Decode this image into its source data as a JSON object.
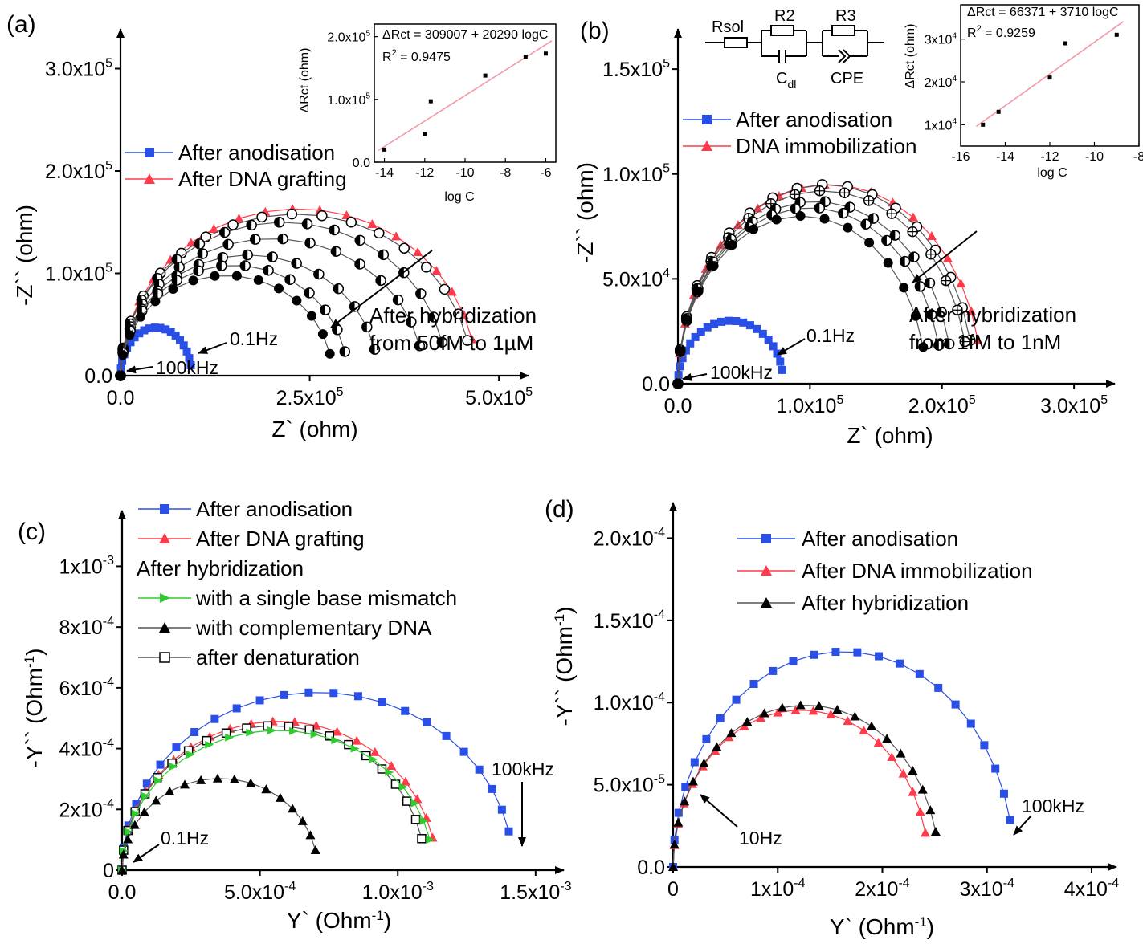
{
  "colors": {
    "blue": "#2a4fe6",
    "red": "#ff3a4a",
    "green": "#2ecc2e",
    "black": "#000000",
    "fit": "#f29aa6"
  },
  "chart_data": [
    {
      "panel": "(a)",
      "type": "scatter",
      "xlabel": "Z` (ohm)",
      "ylabel": "-Z`` (ohm)",
      "xlim": [
        0,
        520000
      ],
      "ylim": [
        0,
        320000
      ],
      "xticks": [
        {
          "v": 0,
          "label": "0.0"
        },
        {
          "v": 250000,
          "label": "2.5x10",
          "exp": "5"
        },
        {
          "v": 500000,
          "label": "5.0x10",
          "exp": "5"
        }
      ],
      "yticks": [
        {
          "v": 0,
          "label": "0.0"
        },
        {
          "v": 100000,
          "label": "1.0x10",
          "exp": "5"
        },
        {
          "v": 200000,
          "label": "2.0x10",
          "exp": "5"
        },
        {
          "v": 300000,
          "label": "3.0x10",
          "exp": "5"
        }
      ],
      "legend": [
        {
          "label": "After anodisation",
          "color": "#2a4fe6",
          "marker": "square"
        },
        {
          "label": "After DNA grafting",
          "color": "#ff3a4a",
          "marker": "triangle"
        }
      ],
      "annotations": [
        "0.1Hz",
        "100kHz",
        "After hybridization",
        "from 50fM to 1µM"
      ],
      "series": [
        {
          "name": "After anodisation",
          "color": "#2a4fe6",
          "marker": "square",
          "rx": 47000,
          "ry": 47000,
          "points": 20
        },
        {
          "name": "After DNA grafting",
          "color": "#ff3a4a",
          "marker": "triangle",
          "rx": 235000,
          "ry": 163000,
          "points": 20
        },
        {
          "name": "hyb 1",
          "color": "#000000",
          "marker": "circle-o",
          "rx": 232000,
          "ry": 158000,
          "points": 18
        },
        {
          "name": "hyb 2",
          "color": "#000000",
          "marker": "circle-h",
          "rx": 215000,
          "ry": 150000,
          "points": 18
        },
        {
          "name": "hyb 3",
          "color": "#000000",
          "marker": "circle-h",
          "rx": 200000,
          "ry": 134000,
          "points": 17
        },
        {
          "name": "hyb 4",
          "color": "#000000",
          "marker": "circle-h",
          "rx": 170000,
          "ry": 118000,
          "points": 16
        },
        {
          "name": "hyb 5",
          "color": "#000000",
          "marker": "circle-h",
          "rx": 150000,
          "ry": 108000,
          "points": 15
        },
        {
          "name": "hyb 6",
          "color": "#000000",
          "marker": "circle-f",
          "rx": 140000,
          "ry": 98000,
          "points": 15
        }
      ],
      "inset": {
        "type": "scatter",
        "xlabel": "log  C",
        "ylabel": "ΔRct (ohm)",
        "xlim": [
          -14.5,
          -5.5
        ],
        "ylim": [
          0,
          220000
        ],
        "xticks": [
          {
            "v": -14,
            "label": "-14"
          },
          {
            "v": -12,
            "label": "-12"
          },
          {
            "v": -10,
            "label": "-10"
          },
          {
            "v": -8,
            "label": "-8"
          },
          {
            "v": -6,
            "label": "-6"
          }
        ],
        "yticks": [
          {
            "v": 0,
            "label": "0.0"
          },
          {
            "v": 100000,
            "label": "1.0x10",
            "exp": "5"
          },
          {
            "v": 200000,
            "label": "2.0x10",
            "exp": "5"
          }
        ],
        "equation": "ΔRct = 309007 + 20290 logC",
        "r2_label": "R",
        "r2_exp": "2",
        "r2_value": " = 0.9475",
        "x": [
          -14,
          -12,
          -11.7,
          -9,
          -7,
          -6
        ],
        "y": [
          20000,
          45000,
          97000,
          138000,
          168000,
          173000
        ],
        "fit": {
          "a": 309007,
          "b": 20290
        }
      }
    },
    {
      "panel": "(b)",
      "type": "scatter",
      "xlabel": "Z` (ohm)",
      "ylabel": "-Z`` (ohm)",
      "xlim": [
        0,
        320000
      ],
      "ylim": [
        0,
        160000
      ],
      "xticks": [
        {
          "v": 0,
          "label": "0.0"
        },
        {
          "v": 100000,
          "label": "1.0x10",
          "exp": "5"
        },
        {
          "v": 200000,
          "label": "2.0x10",
          "exp": "5"
        },
        {
          "v": 300000,
          "label": "3.0x10",
          "exp": "5"
        }
      ],
      "yticks": [
        {
          "v": 0,
          "label": "0.0"
        },
        {
          "v": 50000,
          "label": "5.0x10",
          "exp": "4"
        },
        {
          "v": 100000,
          "label": "1.0x10",
          "exp": "5"
        },
        {
          "v": 150000,
          "label": "1.5x10",
          "exp": "5"
        }
      ],
      "legend": [
        {
          "label": "After anodisation",
          "color": "#2a4fe6",
          "marker": "square"
        },
        {
          "label": "DNA immobilization",
          "color": "#ff3a4a",
          "marker": "triangle"
        }
      ],
      "annotations": [
        "0.1Hz",
        "100kHz",
        "After hybridization",
        "from 1fM to 1nM"
      ],
      "circuit": {
        "rsol": "Rsol",
        "r2": "R2",
        "r3": "R3",
        "cdl": "C",
        "cdl_sub": "dl",
        "cpe": "CPE"
      },
      "series": [
        {
          "name": "After anodisation",
          "color": "#2a4fe6",
          "marker": "square",
          "rx": 40000,
          "ry": 30000,
          "points": 22
        },
        {
          "name": "DNA immobilization",
          "color": "#ff3a4a",
          "marker": "triangle",
          "rx": 115000,
          "ry": 95000,
          "points": 20
        },
        {
          "name": "hyb 1",
          "color": "#000000",
          "marker": "circle-o",
          "rx": 112000,
          "ry": 95000,
          "points": 18
        },
        {
          "name": "hyb 2",
          "color": "#000000",
          "marker": "circle-p",
          "rx": 110000,
          "ry": 92000,
          "points": 18
        },
        {
          "name": "hyb 3",
          "color": "#000000",
          "marker": "circle-h",
          "rx": 104000,
          "ry": 87000,
          "points": 17
        },
        {
          "name": "hyb 4",
          "color": "#000000",
          "marker": "circle-h",
          "rx": 100000,
          "ry": 84000,
          "points": 17
        },
        {
          "name": "hyb 5",
          "color": "#000000",
          "marker": "circle-f",
          "rx": 94000,
          "ry": 80000,
          "points": 16
        }
      ],
      "inset": {
        "type": "scatter",
        "xlabel": "log C",
        "ylabel": "ΔRct (ohm)",
        "xlim": [
          -16,
          -8
        ],
        "ylim": [
          5000,
          38000
        ],
        "xticks": [
          {
            "v": -16,
            "label": "-16"
          },
          {
            "v": -14,
            "label": "-14"
          },
          {
            "v": -12,
            "label": "-12"
          },
          {
            "v": -10,
            "label": "-10"
          },
          {
            "v": -8,
            "label": "-8"
          }
        ],
        "yticks": [
          {
            "v": 10000,
            "label": "1x10",
            "exp": "4"
          },
          {
            "v": 20000,
            "label": "2x10",
            "exp": "4"
          },
          {
            "v": 30000,
            "label": "3x10",
            "exp": "4"
          }
        ],
        "equation": "ΔRct = 66371 + 3710 logC",
        "r2_label": "R",
        "r2_exp": "2",
        "r2_value": " = 0.9259",
        "x": [
          -15,
          -14.3,
          -12,
          -11.3,
          -9
        ],
        "y": [
          10000,
          13000,
          21000,
          29000,
          31000
        ],
        "fit": {
          "a": 66371,
          "b": 3710
        }
      }
    },
    {
      "panel": "(c)",
      "type": "scatter",
      "xlabel": "Y` (Ohm",
      "xlabel_exp": "-1",
      "xlabel_end": ")",
      "ylabel": "-Y`` (Ohm",
      "ylabel_exp": "-1",
      "ylabel_end": ")",
      "xlim": [
        0,
        0.00155
      ],
      "ylim": [
        0,
        0.00112
      ],
      "xticks": [
        {
          "v": 0,
          "label": "0.0"
        },
        {
          "v": 0.0005,
          "label": "5.0x10",
          "exp": "-4"
        },
        {
          "v": 0.001,
          "label": "1.0x10",
          "exp": "-3"
        },
        {
          "v": 0.0015,
          "label": "1.5x10",
          "exp": "-3"
        }
      ],
      "yticks": [
        {
          "v": 0,
          "label": "0"
        },
        {
          "v": 0.0002,
          "label": "2x10",
          "exp": "-4"
        },
        {
          "v": 0.0004,
          "label": "4x10",
          "exp": "-4"
        },
        {
          "v": 0.0006,
          "label": "6x10",
          "exp": "-4"
        },
        {
          "v": 0.0008,
          "label": "8x10",
          "exp": "-4"
        },
        {
          "v": 0.001,
          "label": "1x10",
          "exp": "-3"
        }
      ],
      "legend": [
        {
          "label": "After anodisation",
          "color": "#2a4fe6",
          "marker": "square"
        },
        {
          "label": "After DNA grafting",
          "color": "#ff3a4a",
          "marker": "triangle"
        },
        {
          "label": "After hybridization",
          "color": "",
          "marker": "none"
        },
        {
          "label": "with a single base mismatch",
          "color": "#2ecc2e",
          "marker": "tri-right"
        },
        {
          "label": "with complementary DNA",
          "color": "#000000",
          "marker": "triangle"
        },
        {
          "label": "after denaturation",
          "color": "#000000",
          "marker": "square-o"
        }
      ],
      "annotations": [
        "100kHz",
        "0.1Hz"
      ],
      "series": [
        {
          "name": "After anodisation",
          "color": "#2a4fe6",
          "marker": "square",
          "rx": 0.00071,
          "ry": 0.000585,
          "points": 24
        },
        {
          "name": "After DNA grafting",
          "color": "#ff3a4a",
          "marker": "triangle",
          "rx": 0.00057,
          "ry": 0.00049,
          "points": 22
        },
        {
          "name": "after denaturation",
          "color": "#000000",
          "marker": "square-o",
          "rx": 0.00055,
          "ry": 0.000475,
          "points": 22
        },
        {
          "name": "with a single base mismatch",
          "color": "#2ecc2e",
          "marker": "tri-right",
          "rx": 0.000565,
          "ry": 0.00046,
          "points": 22
        },
        {
          "name": "with complementary DNA",
          "color": "#000000",
          "marker": "triangle",
          "rx": 0.000355,
          "ry": 0.000302,
          "points": 18
        }
      ]
    },
    {
      "panel": "(d)",
      "type": "scatter",
      "xlabel": "Y` (Ohm",
      "xlabel_exp": "-1",
      "xlabel_end": ")",
      "ylabel": "-Y`` (Ohm",
      "ylabel_exp": "-1",
      "ylabel_end": ")",
      "xlim": [
        0,
        0.00041
      ],
      "ylim": [
        0,
        0.00021
      ],
      "xticks": [
        {
          "v": 0,
          "label": "0"
        },
        {
          "v": 0.0001,
          "label": "1x10",
          "exp": "-4"
        },
        {
          "v": 0.0002,
          "label": "2x10",
          "exp": "-4"
        },
        {
          "v": 0.0003,
          "label": "3x10",
          "exp": "-4"
        },
        {
          "v": 0.0004,
          "label": "4x10",
          "exp": "-4"
        }
      ],
      "yticks": [
        {
          "v": 0,
          "label": "0.0"
        },
        {
          "v": 5e-05,
          "label": "5.0x10",
          "exp": "-5"
        },
        {
          "v": 0.0001,
          "label": "1.0x10",
          "exp": "-4"
        },
        {
          "v": 0.00015,
          "label": "1.5x10",
          "exp": "-4"
        },
        {
          "v": 0.0002,
          "label": "2.0x10",
          "exp": "-4"
        }
      ],
      "legend": [
        {
          "label": "After anodisation",
          "color": "#2a4fe6",
          "marker": "square"
        },
        {
          "label": "After DNA immobilization",
          "color": "#ff3a4a",
          "marker": "triangle"
        },
        {
          "label": "After hybridization",
          "color": "#000000",
          "marker": "triangle"
        }
      ],
      "annotations": [
        "100kHz",
        "10Hz"
      ],
      "series": [
        {
          "name": "After anodisation",
          "color": "#2a4fe6",
          "marker": "square",
          "rx": 0.000163,
          "ry": 0.000131,
          "points": 24
        },
        {
          "name": "After DNA immobilization",
          "color": "#ff3a4a",
          "marker": "triangle",
          "rx": 0.000122,
          "ry": 9.55e-05,
          "points": 22
        },
        {
          "name": "After hybridization",
          "color": "#000000",
          "marker": "triangle",
          "rx": 0.000127,
          "ry": 9.85e-05,
          "points": 22
        }
      ]
    }
  ]
}
